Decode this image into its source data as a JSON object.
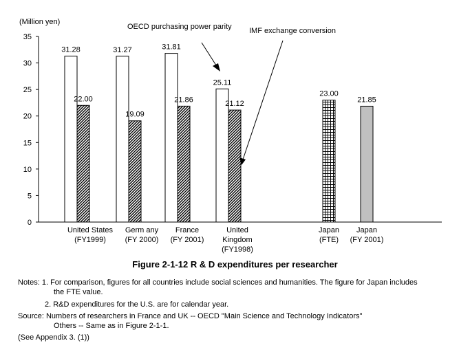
{
  "chart_data": {
    "type": "bar",
    "ylabel": "(Million yen)",
    "ylim": [
      0,
      35
    ],
    "yticks": [
      0,
      5,
      10,
      15,
      20,
      25,
      30,
      35
    ],
    "grid": false,
    "series": [
      {
        "name": "OECD purchasing power parity",
        "pattern": "white"
      },
      {
        "name": "IMF exchange conversion",
        "pattern": "diagonal-hatch"
      }
    ],
    "groups": [
      {
        "label": [
          "United States",
          "(FY1999)"
        ],
        "bars": [
          {
            "series": 0,
            "value": 31.28,
            "label": "31.28"
          },
          {
            "series": 1,
            "value": 22.0,
            "label": "22.00"
          }
        ]
      },
      {
        "label": [
          "Germ any",
          "(FY 2000)"
        ],
        "bars": [
          {
            "series": 0,
            "value": 31.27,
            "label": "31.27"
          },
          {
            "series": 1,
            "value": 19.09,
            "label": "19.09"
          }
        ]
      },
      {
        "label": [
          "France",
          "(FY 2001)"
        ],
        "bars": [
          {
            "series": 0,
            "value": 31.81,
            "label": "31.81"
          },
          {
            "series": 1,
            "value": 21.86,
            "label": "21.86"
          }
        ]
      },
      {
        "label": [
          "United",
          "Kingdom",
          "(FY1998)"
        ],
        "bars": [
          {
            "series": 0,
            "value": 25.11,
            "label": "25.11"
          },
          {
            "series": 1,
            "value": 21.12,
            "label": "21.12"
          }
        ]
      },
      {
        "label": [
          "Japan",
          "(FTE)"
        ],
        "bars": [
          {
            "series": null,
            "value": 23.0,
            "label": "23.00",
            "pattern": "grid"
          }
        ]
      },
      {
        "label": [
          "Japan",
          "(FY 2001)"
        ],
        "bars": [
          {
            "series": null,
            "value": 21.85,
            "label": "21.85",
            "pattern": "gray",
            "color": "#c0c0c0"
          }
        ]
      }
    ]
  },
  "figure_title": "Figure 2-1-12  R & D expenditures per researcher",
  "notes": [
    "Notes: 1. For comparison, figures for all countries include social sciences and humanities. The figure for Japan includes",
    "the FTE value.",
    "2. R&D expenditures for the U.S. are for calendar year.",
    "Source: Numbers of researchers in France and UK -- OECD \"Main Science and Technology Indicators\"",
    "Others -- Same as in Figure 2-1-1.",
    "(See Appendix 3. (1))"
  ]
}
